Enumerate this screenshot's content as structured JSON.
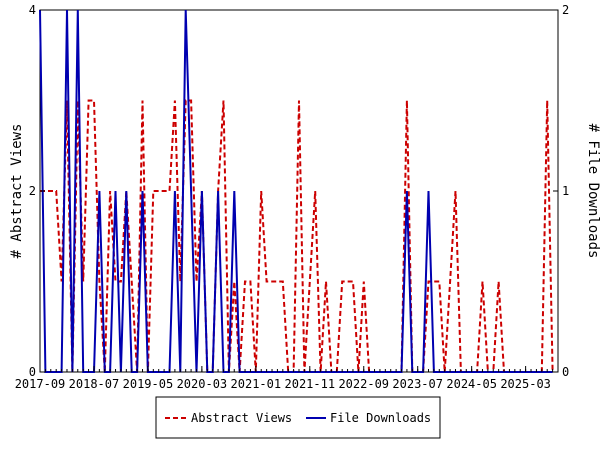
{
  "chart_data": {
    "type": "line",
    "x_tick_labels": [
      "2017-09",
      "2018-07",
      "2019-05",
      "2020-03",
      "2021-01",
      "2021-11",
      "2022-09",
      "2023-07",
      "2024-05",
      "2025-03"
    ],
    "ylabel": "# Abstract Views",
    "y2label": "# File Downloads",
    "ylim": [
      0,
      4
    ],
    "y2lim": [
      0,
      2
    ],
    "y_ticks": [
      "0",
      "2",
      "4"
    ],
    "y2_ticks": [
      "0",
      "1",
      "2"
    ],
    "legend_position": "bottom-center",
    "grid": false,
    "series": [
      {
        "name": "Abstract Views",
        "axis": "left",
        "color": "#cc0000",
        "style": "dashed",
        "points": [
          [
            0,
            2
          ],
          [
            1,
            2
          ],
          [
            1.5,
            2
          ],
          [
            2,
            1
          ],
          [
            2.5,
            3
          ],
          [
            3,
            0
          ],
          [
            3.5,
            3
          ],
          [
            4,
            1
          ],
          [
            4.5,
            3
          ],
          [
            5,
            3
          ],
          [
            5.5,
            1
          ],
          [
            6,
            0
          ],
          [
            6.5,
            2
          ],
          [
            7,
            1
          ],
          [
            7.5,
            1
          ],
          [
            8,
            2
          ],
          [
            8.5,
            1
          ],
          [
            9,
            0
          ],
          [
            9.5,
            3
          ],
          [
            10,
            0
          ],
          [
            10.5,
            2
          ],
          [
            11,
            2
          ],
          [
            11.5,
            2
          ],
          [
            12,
            2
          ],
          [
            12.5,
            3
          ],
          [
            13,
            1
          ],
          [
            13.5,
            3
          ],
          [
            14,
            3
          ],
          [
            14.5,
            1
          ],
          [
            15,
            2
          ],
          [
            15.5,
            0
          ],
          [
            16,
            0
          ],
          [
            16.5,
            2
          ],
          [
            17,
            3
          ],
          [
            17.5,
            0
          ],
          [
            18,
            1
          ],
          [
            18.5,
            0
          ],
          [
            19,
            1
          ],
          [
            19.5,
            1
          ],
          [
            20,
            0
          ],
          [
            20.5,
            2
          ],
          [
            21,
            1
          ],
          [
            21.5,
            1
          ],
          [
            22,
            1
          ],
          [
            22.5,
            1
          ],
          [
            23,
            0
          ],
          [
            23.5,
            0
          ],
          [
            24,
            3
          ],
          [
            24.5,
            0
          ],
          [
            25,
            1
          ],
          [
            25.5,
            2
          ],
          [
            26,
            0
          ],
          [
            26.5,
            1
          ],
          [
            27,
            0
          ],
          [
            27.5,
            0
          ],
          [
            28,
            1
          ],
          [
            28.5,
            1
          ],
          [
            29,
            1
          ],
          [
            29.5,
            0
          ],
          [
            30,
            1
          ],
          [
            30.5,
            0
          ],
          [
            31,
            0
          ],
          [
            31.5,
            0
          ],
          [
            32,
            0
          ],
          [
            32.5,
            0
          ],
          [
            33,
            0
          ],
          [
            33.5,
            0
          ],
          [
            34,
            3
          ],
          [
            34.5,
            0
          ],
          [
            35,
            0
          ],
          [
            35.5,
            0
          ],
          [
            36,
            1
          ],
          [
            36.5,
            1
          ],
          [
            37,
            1
          ],
          [
            37.5,
            0
          ],
          [
            38,
            1
          ],
          [
            38.5,
            2
          ],
          [
            39,
            0
          ],
          [
            39.5,
            0
          ],
          [
            40,
            0
          ],
          [
            40.5,
            0
          ],
          [
            41,
            1
          ],
          [
            41.5,
            0
          ],
          [
            42,
            0
          ],
          [
            42.5,
            1
          ],
          [
            43,
            0
          ],
          [
            43.5,
            0
          ],
          [
            44,
            0
          ],
          [
            44.5,
            0
          ],
          [
            45,
            0
          ],
          [
            45.5,
            0
          ],
          [
            46,
            0
          ],
          [
            46.5,
            0
          ],
          [
            47,
            3
          ],
          [
            47.5,
            0
          ]
        ]
      },
      {
        "name": "File Downloads",
        "axis": "right",
        "color": "#0000b0",
        "style": "solid",
        "points": [
          [
            0,
            2
          ],
          [
            0.5,
            0
          ],
          [
            1,
            0
          ],
          [
            1.5,
            0
          ],
          [
            2,
            0
          ],
          [
            2.5,
            2
          ],
          [
            3,
            0
          ],
          [
            3.5,
            2
          ],
          [
            4,
            0
          ],
          [
            4.5,
            0
          ],
          [
            5,
            0
          ],
          [
            5.5,
            1
          ],
          [
            6,
            0
          ],
          [
            6.5,
            0
          ],
          [
            7,
            1
          ],
          [
            7.5,
            0
          ],
          [
            8,
            1
          ],
          [
            8.5,
            0
          ],
          [
            9,
            0
          ],
          [
            9.5,
            1
          ],
          [
            10,
            0
          ],
          [
            10.5,
            0
          ],
          [
            11,
            0
          ],
          [
            11.5,
            0
          ],
          [
            12,
            0
          ],
          [
            12.5,
            1
          ],
          [
            13,
            0
          ],
          [
            13.5,
            2
          ],
          [
            14,
            1
          ],
          [
            14.5,
            0
          ],
          [
            15,
            1
          ],
          [
            15.5,
            0
          ],
          [
            16,
            0
          ],
          [
            16.5,
            1
          ],
          [
            17,
            0
          ],
          [
            17.5,
            0
          ],
          [
            18,
            1
          ],
          [
            18.5,
            0
          ],
          [
            19,
            0
          ],
          [
            19.5,
            0
          ],
          [
            20,
            0
          ],
          [
            21,
            0
          ],
          [
            22,
            0
          ],
          [
            23,
            0
          ],
          [
            24,
            0
          ],
          [
            25,
            0
          ],
          [
            26,
            0
          ],
          [
            27,
            0
          ],
          [
            28,
            0
          ],
          [
            29,
            0
          ],
          [
            30,
            0
          ],
          [
            31,
            0
          ],
          [
            32,
            0
          ],
          [
            32.5,
            0
          ],
          [
            33,
            0
          ],
          [
            33.5,
            0
          ],
          [
            34,
            1
          ],
          [
            34.5,
            0
          ],
          [
            35,
            0
          ],
          [
            35.5,
            0
          ],
          [
            36,
            1
          ],
          [
            36.5,
            0
          ],
          [
            37,
            0
          ],
          [
            38,
            0
          ],
          [
            39,
            0
          ],
          [
            40,
            0
          ],
          [
            41,
            0
          ],
          [
            42,
            0
          ],
          [
            43,
            0
          ],
          [
            44,
            0
          ],
          [
            45,
            0
          ],
          [
            46,
            0
          ],
          [
            47,
            0
          ],
          [
            47.5,
            0
          ]
        ]
      }
    ]
  }
}
